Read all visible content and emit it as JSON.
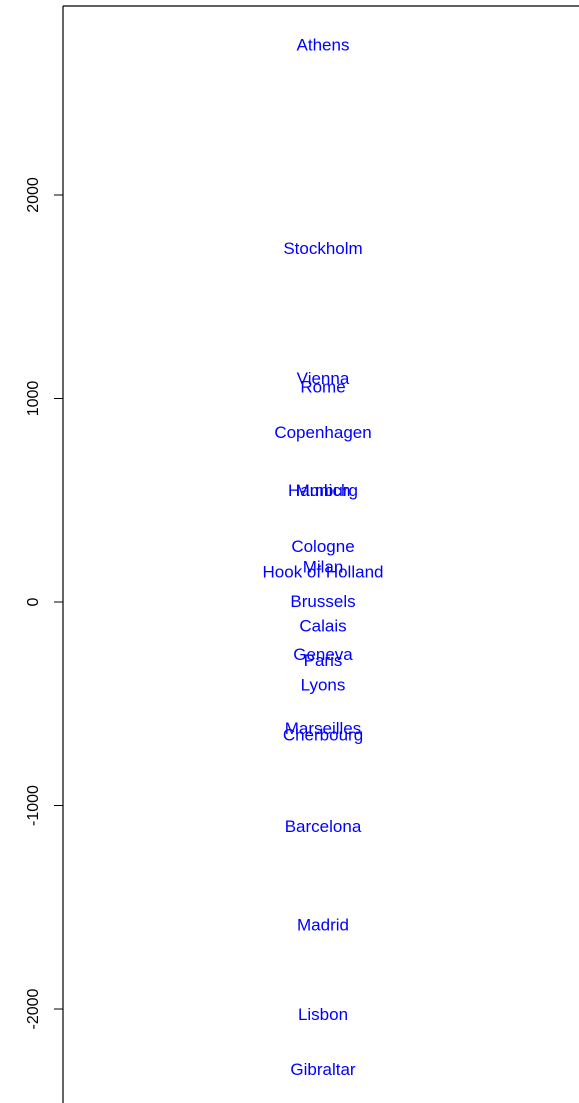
{
  "chart_data": {
    "type": "scatter",
    "title": "",
    "xlabel": "",
    "ylabel": "",
    "ylim": [
      -2480,
      2920
    ],
    "y_ticks": [
      -2000,
      -1000,
      0,
      1000,
      2000
    ],
    "y_tick_labels": [
      "-2000",
      "-1000",
      "0",
      "1000",
      "2000"
    ],
    "label_color": "#0000ff",
    "points": [
      {
        "label": "Athens",
        "y": 2740
      },
      {
        "label": "Stockholm",
        "y": 1740
      },
      {
        "label": "Vienna",
        "y": 1100
      },
      {
        "label": "Rome",
        "y": 1060
      },
      {
        "label": "Copenhagen",
        "y": 835
      },
      {
        "label": "Hamburg",
        "y": 550
      },
      {
        "label": "Munich",
        "y": 550
      },
      {
        "label": "Cologne",
        "y": 275
      },
      {
        "label": "Milan",
        "y": 175
      },
      {
        "label": "Hook of Holland",
        "y": 150
      },
      {
        "label": "Brussels",
        "y": 5
      },
      {
        "label": "Calais",
        "y": -115
      },
      {
        "label": "Geneva",
        "y": -255
      },
      {
        "label": "Paris",
        "y": -285
      },
      {
        "label": "Lyons",
        "y": -405
      },
      {
        "label": "Marseilles",
        "y": -620
      },
      {
        "label": "Cherbourg",
        "y": -650
      },
      {
        "label": "Barcelona",
        "y": -1100
      },
      {
        "label": "Madrid",
        "y": -1585
      },
      {
        "label": "Lisbon",
        "y": -2025
      },
      {
        "label": "Gibraltar",
        "y": -2295
      }
    ]
  }
}
